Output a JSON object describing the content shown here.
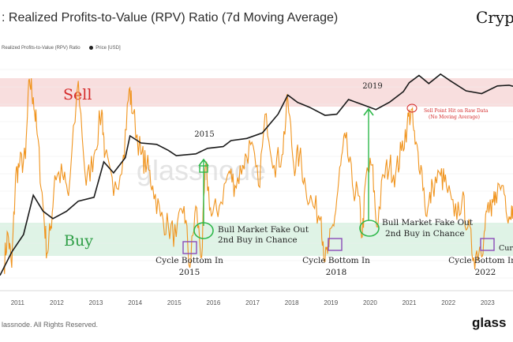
{
  "header": {
    "title": ": Realized Profits-to-Value (RPV) Ratio (7d Moving Average)",
    "brand": "Crypt"
  },
  "legend": {
    "series1": "Realized Profits-to-Value (RPV) Ratio",
    "series2": "Price [USD]"
  },
  "footer": {
    "copyright": "lassnode. All Rights Reserved.",
    "logo": "glass"
  },
  "colors": {
    "rpv": "#f0941e",
    "price": "#1a1a1a",
    "sell_zone": "#f8dede",
    "buy_zone": "#dff3e6",
    "sell_text": "#d42a2a",
    "buy_text": "#2e9e46",
    "arrow": "#2eb84a",
    "box": "#8a4bb8"
  },
  "chart_data": {
    "type": "line",
    "title": "Realized Profits-to-Value (RPV) Ratio (7d Moving Average)",
    "x_range": [
      2010.6,
      2023.7
    ],
    "x_ticks": [
      "2011",
      "2012",
      "2013",
      "2014",
      "2015",
      "2016",
      "2017",
      "2018",
      "2019",
      "2020",
      "2021",
      "2022",
      "2023"
    ],
    "zones": {
      "sell": "Sell",
      "buy": "Buy"
    },
    "series": [
      {
        "name": "Price [USD]",
        "scale": "log",
        "points": [
          [
            2010.6,
            0.06
          ],
          [
            2010.9,
            0.3
          ],
          [
            2011.2,
            1
          ],
          [
            2011.45,
            15
          ],
          [
            2011.7,
            5
          ],
          [
            2011.95,
            3
          ],
          [
            2012.3,
            5
          ],
          [
            2012.6,
            10
          ],
          [
            2013.0,
            13
          ],
          [
            2013.25,
            150
          ],
          [
            2013.5,
            70
          ],
          [
            2013.8,
            200
          ],
          [
            2013.92,
            900
          ],
          [
            2014.2,
            550
          ],
          [
            2014.6,
            500
          ],
          [
            2014.9,
            330
          ],
          [
            2015.1,
            230
          ],
          [
            2015.6,
            260
          ],
          [
            2015.9,
            380
          ],
          [
            2016.3,
            430
          ],
          [
            2016.5,
            650
          ],
          [
            2016.9,
            750
          ],
          [
            2017.3,
            1100
          ],
          [
            2017.7,
            4000
          ],
          [
            2017.95,
            15000
          ],
          [
            2018.2,
            9000
          ],
          [
            2018.5,
            6500
          ],
          [
            2018.9,
            3700
          ],
          [
            2019.2,
            4000
          ],
          [
            2019.5,
            11000
          ],
          [
            2019.9,
            7400
          ],
          [
            2020.2,
            5500
          ],
          [
            2020.55,
            9200
          ],
          [
            2020.9,
            19000
          ],
          [
            2021.05,
            35000
          ],
          [
            2021.3,
            58000
          ],
          [
            2021.55,
            33000
          ],
          [
            2021.85,
            63000
          ],
          [
            2022.1,
            40000
          ],
          [
            2022.5,
            20000
          ],
          [
            2022.9,
            16500
          ],
          [
            2023.3,
            28000
          ],
          [
            2023.6,
            29500
          ],
          [
            2023.7,
            27500
          ]
        ]
      },
      {
        "name": "Realized Profits-to-Value (RPV) Ratio",
        "scale": "relative",
        "points": [
          [
            2010.7,
            0.06
          ],
          [
            2010.8,
            0.22
          ],
          [
            2010.9,
            0.05
          ],
          [
            2011.0,
            0.5
          ],
          [
            2011.1,
            0.55
          ],
          [
            2011.25,
            0.58
          ],
          [
            2011.35,
            0.97
          ],
          [
            2011.45,
            0.88
          ],
          [
            2011.55,
            0.7
          ],
          [
            2011.7,
            0.35
          ],
          [
            2011.8,
            0.12
          ],
          [
            2011.9,
            0.25
          ],
          [
            2012.0,
            0.5
          ],
          [
            2012.2,
            0.5
          ],
          [
            2012.35,
            0.4
          ],
          [
            2012.6,
            0.96
          ],
          [
            2012.8,
            0.45
          ],
          [
            2013.0,
            0.6
          ],
          [
            2013.2,
            0.82
          ],
          [
            2013.28,
            0.6
          ],
          [
            2013.5,
            0.4
          ],
          [
            2013.75,
            0.6
          ],
          [
            2013.9,
            0.92
          ],
          [
            2014.0,
            0.8
          ],
          [
            2014.2,
            0.6
          ],
          [
            2014.35,
            0.55
          ],
          [
            2014.5,
            0.45
          ],
          [
            2014.7,
            0.3
          ],
          [
            2014.9,
            0.25
          ],
          [
            2015.1,
            0.2
          ],
          [
            2015.3,
            0.35
          ],
          [
            2015.45,
            0.05
          ],
          [
            2015.6,
            0.35
          ],
          [
            2015.75,
            0.1
          ],
          [
            2015.85,
            0.55
          ],
          [
            2016.0,
            0.3
          ],
          [
            2016.2,
            0.35
          ],
          [
            2016.45,
            0.52
          ],
          [
            2016.6,
            0.45
          ],
          [
            2016.8,
            0.55
          ],
          [
            2017.0,
            0.65
          ],
          [
            2017.2,
            0.45
          ],
          [
            2017.4,
            0.8
          ],
          [
            2017.6,
            0.55
          ],
          [
            2017.8,
            0.6
          ],
          [
            2017.95,
            0.87
          ],
          [
            2018.1,
            0.55
          ],
          [
            2018.25,
            0.6
          ],
          [
            2018.4,
            0.45
          ],
          [
            2018.6,
            0.35
          ],
          [
            2018.8,
            0.3
          ],
          [
            2018.9,
            0.08
          ],
          [
            2019.0,
            0.15
          ],
          [
            2019.15,
            0.3
          ],
          [
            2019.3,
            0.55
          ],
          [
            2019.42,
            0.68
          ],
          [
            2019.6,
            0.45
          ],
          [
            2019.75,
            0.4
          ],
          [
            2019.85,
            0.2
          ],
          [
            2019.95,
            0.5
          ],
          [
            2020.1,
            0.55
          ],
          [
            2020.22,
            0.25
          ],
          [
            2020.4,
            0.5
          ],
          [
            2020.55,
            0.55
          ],
          [
            2020.7,
            0.5
          ],
          [
            2020.85,
            0.62
          ],
          [
            2021.0,
            0.75
          ],
          [
            2021.1,
            0.82
          ],
          [
            2021.2,
            0.65
          ],
          [
            2021.35,
            0.55
          ],
          [
            2021.5,
            0.3
          ],
          [
            2021.65,
            0.45
          ],
          [
            2021.85,
            0.5
          ],
          [
            2022.0,
            0.45
          ],
          [
            2022.2,
            0.3
          ],
          [
            2022.4,
            0.38
          ],
          [
            2022.55,
            0.25
          ],
          [
            2022.7,
            0.1
          ],
          [
            2022.85,
            0.15
          ],
          [
            2022.95,
            0.18
          ],
          [
            2023.05,
            0.35
          ],
          [
            2023.15,
            0.3
          ],
          [
            2023.25,
            0.42
          ],
          [
            2023.45,
            0.45
          ],
          [
            2023.6,
            0.3
          ],
          [
            2023.7,
            0.35
          ]
        ]
      }
    ],
    "annotations": [
      {
        "text": "2015",
        "year": 2015.6
      },
      {
        "text": "2019",
        "year": 2019.5
      },
      {
        "text": "Sell Point Hit on Raw Data",
        "year": 2021.0
      },
      {
        "text": "(No Moving Average)",
        "year": 2021.0
      },
      {
        "text": "Bull Market Fake Out",
        "year": 2016.0
      },
      {
        "text": "2nd Buy in Chance",
        "year": 2016.0
      },
      {
        "text": "Bull Market Fake Out",
        "year": 2020.2
      },
      {
        "text": "2nd Buy in Chance",
        "year": 2020.2
      },
      {
        "text": "Cycle Bottom In",
        "year": 2015.45
      },
      {
        "text": "2015",
        "year": 2015.45
      },
      {
        "text": "Cycle Bottom In",
        "year": 2018.9
      },
      {
        "text": "2018",
        "year": 2018.9
      },
      {
        "text": "Cycle Bottom In",
        "year": 2022.7
      },
      {
        "text": "2022",
        "year": 2022.7
      },
      {
        "text": "Curr",
        "year": 2023.6
      }
    ],
    "watermark": "glassnode"
  }
}
